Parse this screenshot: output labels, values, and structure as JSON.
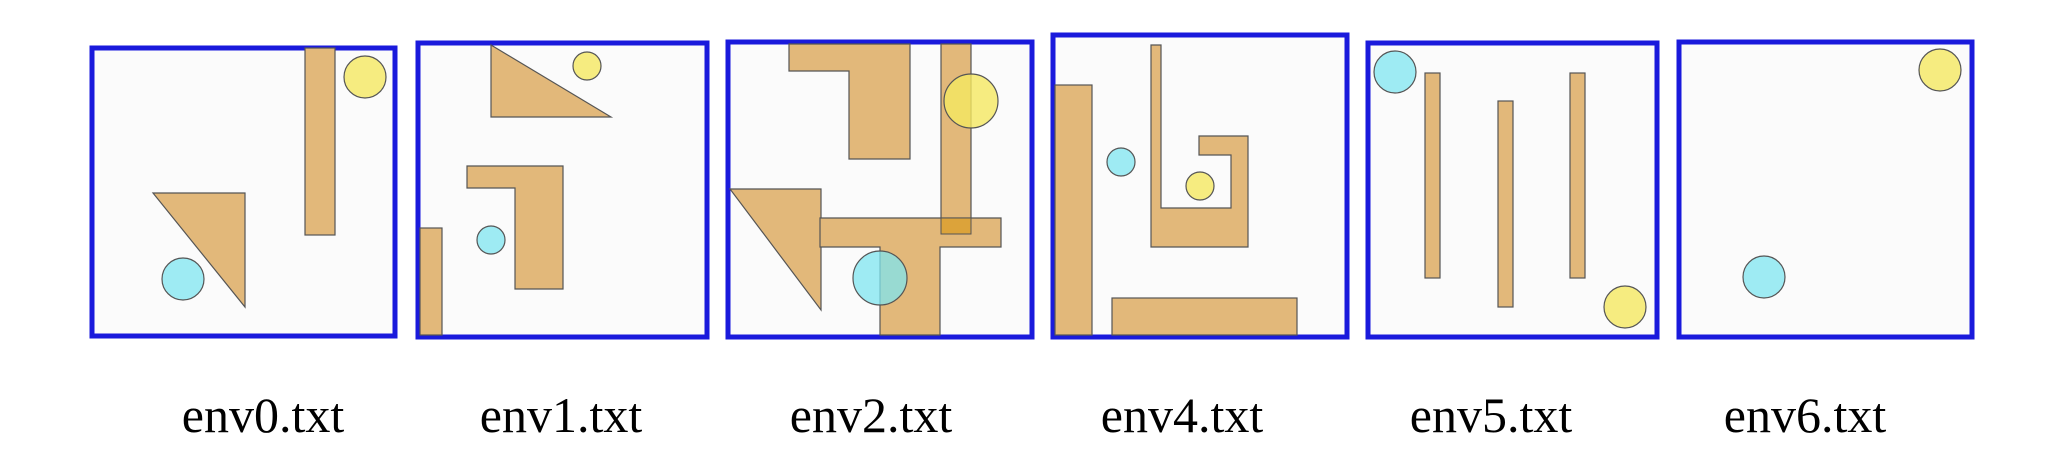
{
  "colors": {
    "frame": "#1a1adc",
    "frame_fill": "#fbfbfb",
    "obstacle": "#e2b87a",
    "obstacle_stroke": "#555555",
    "start": "#7fe6f0",
    "goal": "#f5e862"
  },
  "environments": [
    {
      "label": "env0.txt",
      "obstacles": [
        {
          "kind": "polygon",
          "name": "obstacle-triangle"
        },
        {
          "kind": "rect",
          "name": "obstacle-bar"
        }
      ],
      "start": {
        "name": "start-circle"
      },
      "goal": {
        "name": "goal-circle"
      }
    },
    {
      "label": "env1.txt",
      "obstacles": [
        {
          "kind": "polygon",
          "name": "obstacle-triangle"
        },
        {
          "kind": "polygon",
          "name": "obstacle-l-shape"
        },
        {
          "kind": "rect",
          "name": "obstacle-bar"
        }
      ],
      "start": {
        "name": "start-circle"
      },
      "goal": {
        "name": "goal-circle"
      }
    },
    {
      "label": "env2.txt",
      "obstacles": [
        {
          "kind": "polygon",
          "name": "obstacle-l-shape"
        },
        {
          "kind": "polygon",
          "name": "obstacle-triangle"
        },
        {
          "kind": "polygon",
          "name": "obstacle-t-shape"
        },
        {
          "kind": "rect",
          "name": "obstacle-bar"
        }
      ],
      "start": {
        "name": "start-circle"
      },
      "goal": {
        "name": "goal-circle"
      }
    },
    {
      "label": "env4.txt",
      "obstacles": [
        {
          "kind": "rect",
          "name": "obstacle-bar"
        },
        {
          "kind": "rect",
          "name": "obstacle-bar"
        },
        {
          "kind": "polygon",
          "name": "obstacle-spiral"
        }
      ],
      "start": {
        "name": "start-circle"
      },
      "goal": {
        "name": "goal-circle"
      }
    },
    {
      "label": "env5.txt",
      "obstacles": [
        {
          "kind": "rect",
          "name": "obstacle-bar"
        },
        {
          "kind": "rect",
          "name": "obstacle-bar"
        },
        {
          "kind": "rect",
          "name": "obstacle-bar"
        }
      ],
      "start": {
        "name": "start-circle"
      },
      "goal": {
        "name": "goal-circle"
      }
    },
    {
      "label": "env6.txt",
      "obstacles": [],
      "start": {
        "name": "start-circle"
      },
      "goal": {
        "name": "goal-circle"
      }
    }
  ]
}
